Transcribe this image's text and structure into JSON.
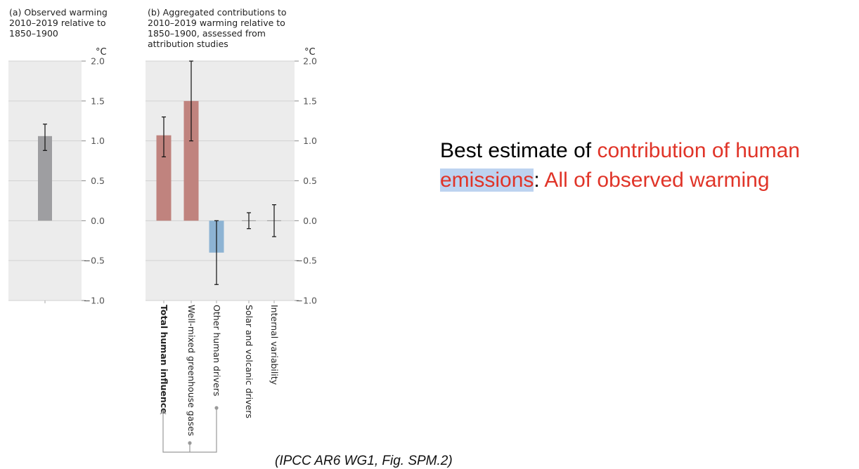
{
  "panel_a_title": [
    "(a) Observed warming",
    "2010–2019 relative to",
    "1850–1900"
  ],
  "panel_b_title": [
    "(b) Aggregated contributions to",
    "2010–2019 warming relative to",
    "1850–1900, assessed from",
    "attribution studies"
  ],
  "unit_label": "°C",
  "headline": {
    "part1": "Best estimate of ",
    "part2": "contribution of human",
    "part3": "emissions",
    "part4": ": ",
    "part5": "All of observed warming"
  },
  "citation": "(IPCC AR6 WG1, Fig. SPM.2)",
  "colors": {
    "panel_bg": "#ececec",
    "observed": "#9e9ea1",
    "human": "#c0837e",
    "other": "#8db3d3",
    "headline_red": "#e03428"
  },
  "chart_data": [
    {
      "type": "bar",
      "title": "(a) Observed warming 2010–2019 relative to 1850–1900",
      "ylabel": "°C",
      "ylim": [
        -1.0,
        2.0
      ],
      "yticks": [
        "2.0",
        "1.5",
        "1.0",
        "0.5",
        "0.0",
        "−0.5",
        "−1.0"
      ],
      "categories": [
        "Observed warming"
      ],
      "values": [
        1.06
      ],
      "error_low": [
        0.88
      ],
      "error_high": [
        1.21
      ]
    },
    {
      "type": "bar",
      "title": "(b) Aggregated contributions to 2010–2019 warming relative to 1850–1900, assessed from attribution studies",
      "ylabel": "°C",
      "ylim": [
        -1.0,
        2.0
      ],
      "yticks": [
        "2.0",
        "1.5",
        "1.0",
        "0.5",
        "0.0",
        "−0.5",
        "−1.0"
      ],
      "categories": [
        "Total human influence",
        "Well-mixed greenhouse gases",
        "Other human drivers",
        "Solar and volcanic drivers",
        "Internal variability"
      ],
      "values": [
        1.07,
        1.5,
        -0.4,
        0.0,
        0.0
      ],
      "error_low": [
        0.8,
        1.0,
        -0.8,
        -0.1,
        -0.2
      ],
      "error_high": [
        1.3,
        2.0,
        0.0,
        0.1,
        0.2
      ]
    }
  ]
}
